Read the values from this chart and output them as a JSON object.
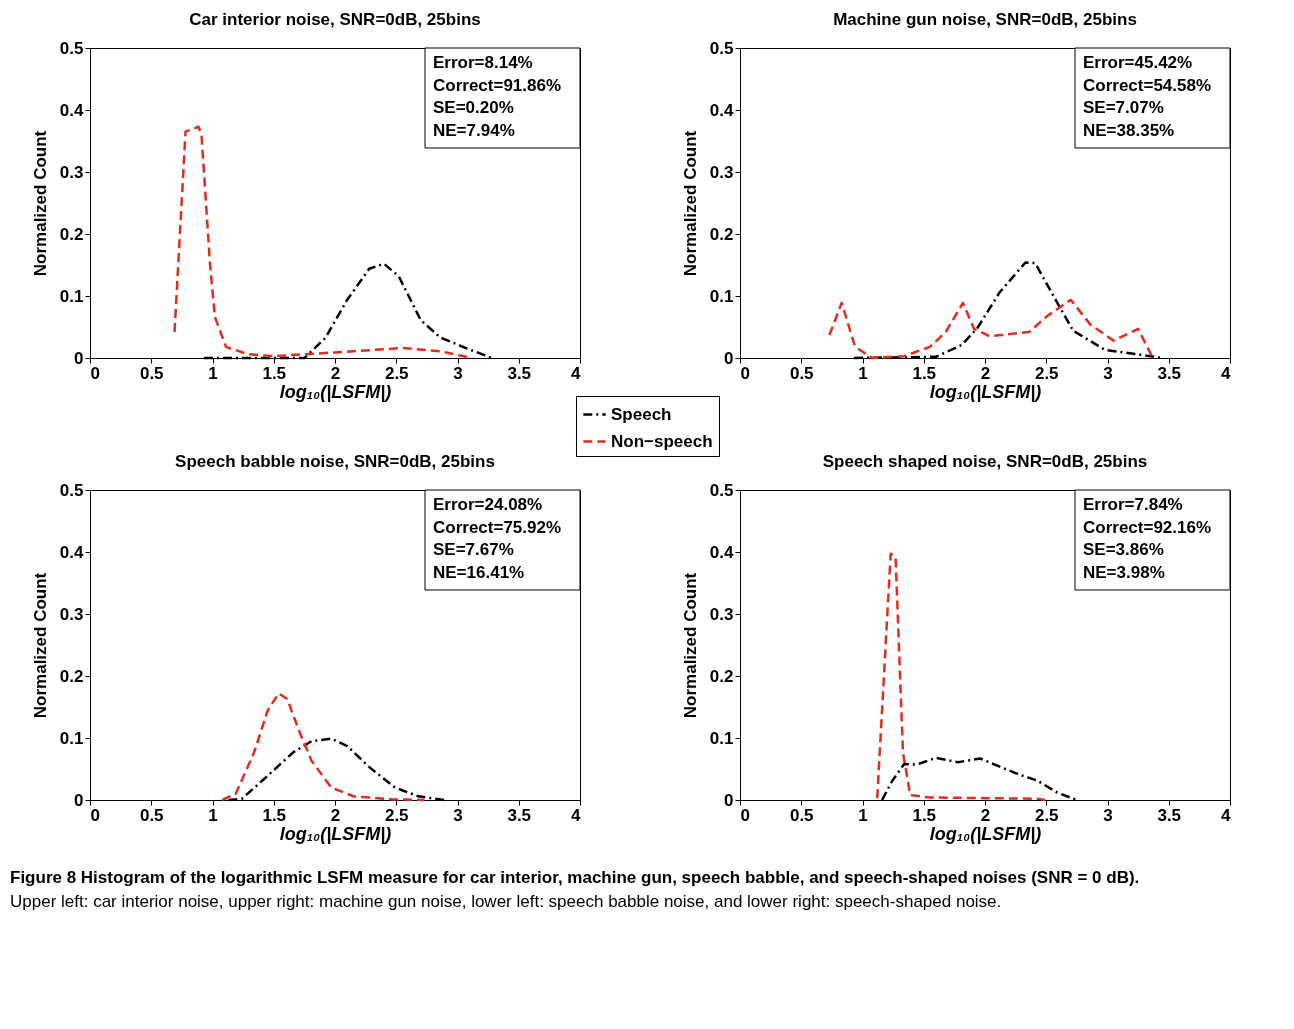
{
  "chart_data": [
    {
      "type": "line",
      "title": "Car interior noise, SNR=0dB, 25bins",
      "xlabel": "log₁₀(|LSFM|)",
      "ylabel": "Normalized Count",
      "xlim": [
        0,
        4
      ],
      "xticks": [
        0,
        0.5,
        1,
        1.5,
        2,
        2.5,
        3,
        3.5,
        4
      ],
      "ylim": [
        0,
        0.5
      ],
      "yticks": [
        0,
        0.1,
        0.2,
        0.3,
        0.4,
        0.5
      ],
      "legend": "bottom right",
      "annotations": [
        "Error=8.14%",
        "Correct=91.86%",
        "SE=0.20%",
        "NE=7.94%"
      ],
      "series": [
        {
          "name": "Speech",
          "color": "#000000",
          "line_style": "dashdot",
          "x": [
            0.93,
            1.4,
            1.75,
            1.92,
            2.1,
            2.28,
            2.4,
            2.52,
            2.7,
            2.86,
            3.07,
            3.28
          ],
          "values": [
            0,
            0,
            0,
            0.032,
            0.094,
            0.144,
            0.152,
            0.132,
            0.061,
            0.033,
            0.016,
            0
          ]
        },
        {
          "name": "Non−speech",
          "color": "#e02d1f",
          "line_style": "dashed",
          "x": [
            0.69,
            0.78,
            0.886,
            0.91,
            0.98,
            1.02,
            1.11,
            1.29,
            1.5,
            2.0,
            2.55,
            2.86,
            3.12
          ],
          "values": [
            0.042,
            0.365,
            0.373,
            0.36,
            0.151,
            0.066,
            0.018,
            0.006,
            0.003,
            0.009,
            0.016,
            0.011,
            0
          ]
        }
      ]
    },
    {
      "type": "line",
      "title": "Machine gun noise, SNR=0dB, 25bins",
      "xlabel": "log₁₀(|LSFM|)",
      "ylabel": "Normalized Count",
      "xlim": [
        0,
        4
      ],
      "xticks": [
        0,
        0.5,
        1,
        1.5,
        2,
        2.5,
        3,
        3.5,
        4
      ],
      "ylim": [
        0,
        0.5
      ],
      "yticks": [
        0,
        0.1,
        0.2,
        0.3,
        0.4,
        0.5
      ],
      "annotations": [
        "Error=45.42%",
        "Correct=54.58%",
        "SE=7.07%",
        "NE=38.35%"
      ],
      "series": [
        {
          "color": "#000000",
          "line_style": "dashdot",
          "x": [
            0.93,
            1.6,
            1.81,
            1.94,
            2.12,
            2.33,
            2.41,
            2.57,
            2.72,
            2.98,
            3.25,
            3.44
          ],
          "values": [
            0,
            0.002,
            0.021,
            0.049,
            0.106,
            0.154,
            0.153,
            0.096,
            0.044,
            0.013,
            0.006,
            0
          ]
        },
        {
          "color": "#e02d1f",
          "line_style": "dashed",
          "x": [
            0.73,
            0.83,
            0.94,
            1.08,
            1.34,
            1.55,
            1.68,
            1.82,
            1.91,
            2.04,
            2.36,
            2.51,
            2.7,
            2.86,
            3.05,
            3.25,
            3.36
          ],
          "values": [
            0.037,
            0.089,
            0.018,
            0,
            0.003,
            0.018,
            0.042,
            0.089,
            0.047,
            0.035,
            0.042,
            0.068,
            0.094,
            0.054,
            0.028,
            0.047,
            0.004
          ]
        }
      ]
    },
    {
      "type": "line",
      "title": "Speech babble noise, SNR=0dB, 25bins",
      "xlabel": "log₁₀(|LSFM|)",
      "ylabel": "Normalized Count",
      "xlim": [
        0,
        4
      ],
      "xticks": [
        0,
        0.5,
        1,
        1.5,
        2,
        2.5,
        3,
        3.5,
        4
      ],
      "ylim": [
        0,
        0.5
      ],
      "yticks": [
        0,
        0.1,
        0.2,
        0.3,
        0.4,
        0.5
      ],
      "annotations": [
        "Error=24.08%",
        "Correct=75.92%",
        "SE=7.67%",
        "NE=16.41%"
      ],
      "series": [
        {
          "color": "#000000",
          "line_style": "dashdot",
          "x": [
            1.13,
            1.24,
            1.45,
            1.66,
            1.81,
            1.97,
            2.1,
            2.28,
            2.49,
            2.68,
            2.89
          ],
          "values": [
            0,
            0.002,
            0.039,
            0.077,
            0.095,
            0.099,
            0.087,
            0.053,
            0.02,
            0.006,
            0
          ]
        },
        {
          "color": "#e02d1f",
          "line_style": "dashed",
          "x": [
            1.08,
            1.19,
            1.34,
            1.45,
            1.54,
            1.61,
            1.71,
            1.81,
            1.97,
            2.15,
            2.47,
            2.73
          ],
          "values": [
            0,
            0.01,
            0.077,
            0.144,
            0.172,
            0.163,
            0.11,
            0.063,
            0.02,
            0.006,
            0.001,
            0
          ]
        }
      ]
    },
    {
      "type": "line",
      "title": "Speech shaped noise, SNR=0dB, 25bins",
      "xlabel": "log₁₀(|LSFM|)",
      "ylabel": "Normalized Count",
      "xlim": [
        0,
        4
      ],
      "xticks": [
        0,
        0.5,
        1,
        1.5,
        2,
        2.5,
        3,
        3.5,
        4
      ],
      "ylim": [
        0,
        0.5
      ],
      "yticks": [
        0,
        0.1,
        0.2,
        0.3,
        0.4,
        0.5
      ],
      "annotations": [
        "Error=7.84%",
        "Correct=92.16%",
        "SE=3.86%",
        "NE=3.98%",
        "Figure 8 Histogram of the logarithmic LSFM measure for car interior, machine gun, speech babble, and speech-shaped noises (SNR = 0 dB).",
        "Upper left: car interior noise, upper right: machine gun noise, lower left: speech babble noise, and lower right: speech-shaped noise."
      ],
      "series": [
        {
          "color": "#000000",
          "line_style": "dashdot",
          "x": [
            1.16,
            1.24,
            1.34,
            1.44,
            1.6,
            1.78,
            1.96,
            2.07,
            2.28,
            2.43,
            2.59,
            2.75
          ],
          "values": [
            0,
            0.03,
            0.058,
            0.057,
            0.068,
            0.061,
            0.067,
            0.058,
            0.041,
            0.031,
            0.012,
            0
          ]
        },
        {
          "color": "#e02d1f",
          "line_style": "dashed",
          "x": [
            1.12,
            1.23,
            1.27,
            1.33,
            1.39,
            1.55,
            2.02,
            2.43,
            2.49
          ],
          "values": [
            0.003,
            0.397,
            0.392,
            0.077,
            0.008,
            0.004,
            0.003,
            0.002,
            0
          ]
        }
      ]
    }
  ]
}
